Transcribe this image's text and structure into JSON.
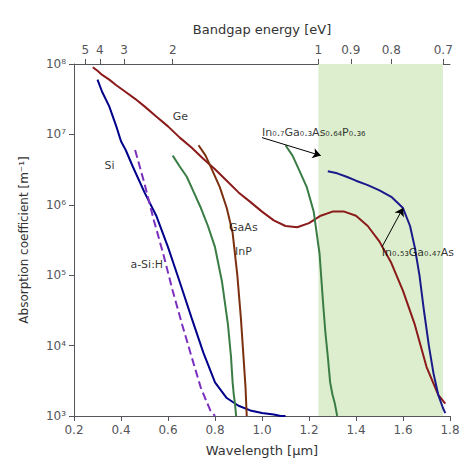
{
  "chart_data": {
    "type": "line",
    "log": "y",
    "grid": false,
    "xlabel": "Wavelength [μm]",
    "ylabel": "Absorption coefficient [m⁻¹]",
    "x2label": "Bandgap energy [eV]",
    "xlim": [
      0.2,
      1.8
    ],
    "ylim": [
      1000.0,
      100000000.0
    ],
    "x2lim": [
      0.2,
      1.8
    ],
    "xticks": [
      0.2,
      0.4,
      0.6,
      0.8,
      {
        "value": 1.0,
        "label": "1.0"
      },
      1.2,
      1.4,
      1.6,
      1.8
    ],
    "yticks": [
      {
        "value": 1000,
        "label": "10³"
      },
      {
        "value": 10000,
        "label": "10⁴"
      },
      {
        "value": 100000,
        "label": "10⁵"
      },
      {
        "value": 1000000,
        "label": "10⁶"
      },
      {
        "value": 10000000,
        "label": "10⁷"
      },
      {
        "value": 100000000,
        "label": "10⁸"
      }
    ],
    "x2ticks": [
      {
        "value": 0.248,
        "label": "5"
      },
      {
        "value": 0.31,
        "label": "4"
      },
      {
        "value": 0.41333333333333333,
        "label": "3"
      },
      {
        "value": 0.62,
        "label": "2"
      },
      {
        "value": 1.24,
        "label": "1"
      },
      {
        "value": 1.3777777777777778,
        "label": "0.9"
      },
      {
        "value": 1.55,
        "label": "0.8"
      },
      {
        "value": 1.7714285714285714,
        "label": "0.7"
      }
    ],
    "shaded_region": {
      "x": [
        1.24,
        1.77
      ],
      "color": "#ddeece"
    },
    "series": [
      {
        "color": "#8b1a1a",
        "line_style": "solid",
        "x": [
          0.28,
          0.3,
          0.32,
          0.35,
          0.38,
          0.42,
          0.46,
          0.5,
          0.55,
          0.6,
          0.65,
          0.7,
          0.75,
          0.8,
          0.85,
          0.9,
          0.95,
          1.0,
          1.05,
          1.1,
          1.15,
          1.2,
          1.25,
          1.3,
          1.35,
          1.4,
          1.45,
          1.5,
          1.55,
          1.6,
          1.65,
          1.7,
          1.75,
          1.78
        ],
        "values": [
          90000000.0,
          80000000.0,
          70000000.0,
          60000000.0,
          50000000.0,
          40000000.0,
          32000000.0,
          25000000.0,
          18000000.0,
          13000000.0,
          9000000.0,
          6500000.0,
          4500000.0,
          3200000.0,
          2200000.0,
          1500000.0,
          1100000.0,
          800000.0,
          600000.0,
          500000.0,
          480000.0,
          550000.0,
          700000.0,
          800000.0,
          800000.0,
          700000.0,
          500000.0,
          300000.0,
          150000.0,
          60000.0,
          20000.0,
          5000.0,
          2000.0,
          1500.0
        ]
      },
      {
        "color": "#00008b",
        "line_style": "solid",
        "x": [
          0.3,
          0.32,
          0.35,
          0.38,
          0.4,
          0.42,
          0.45,
          0.5,
          0.55,
          0.6,
          0.65,
          0.7,
          0.75,
          0.8,
          0.85,
          0.9,
          0.95,
          1.0,
          1.05,
          1.08,
          1.1
        ],
        "values": [
          60000000.0,
          40000000.0,
          25000000.0,
          13000000.0,
          8000000.0,
          6000000.0,
          3500000.0,
          1500000.0,
          700000.0,
          250000.0,
          80000.0,
          25000.0,
          8000.0,
          3000.0,
          1800.0,
          1400.0,
          1200.0,
          1100.0,
          1050.0,
          1000.0,
          1000.0
        ]
      },
      {
        "color": "#7b2fbe",
        "line_style": "dashed",
        "x": [
          0.46,
          0.5,
          0.54,
          0.58,
          0.62,
          0.66,
          0.7,
          0.74,
          0.78,
          0.8
        ],
        "values": [
          6000000.0,
          2000000.0,
          600000.0,
          200000.0,
          60000.0,
          20000.0,
          7000.0,
          2500.0,
          1200.0,
          1000.0
        ]
      },
      {
        "color": "#3a7d44",
        "line_style": "solid",
        "x": [
          0.62,
          0.65,
          0.68,
          0.71,
          0.74,
          0.77,
          0.8,
          0.83,
          0.855,
          0.868,
          0.875,
          0.88,
          0.885,
          0.89
        ],
        "values": [
          5000000.0,
          3500000.0,
          2500000.0,
          1500000.0,
          900000.0,
          500000.0,
          250000.0,
          80000.0,
          20000.0,
          7000.0,
          3000.0,
          2000.0,
          1500.0,
          1000.0
        ]
      },
      {
        "color": "#7b3010",
        "line_style": "solid",
        "x": [
          0.73,
          0.76,
          0.79,
          0.82,
          0.85,
          0.875,
          0.895,
          0.91,
          0.92,
          0.93,
          0.935
        ],
        "values": [
          7000000.0,
          5000000.0,
          3000000.0,
          1800000.0,
          900000.0,
          400000.0,
          100000.0,
          25000.0,
          8000.0,
          2500.0,
          1000.0
        ]
      },
      {
        "color": "#3a7d44",
        "line_style": "solid",
        "x": [
          1.1,
          1.13,
          1.16,
          1.19,
          1.22,
          1.245,
          1.26,
          1.27,
          1.28,
          1.29,
          1.3,
          1.31,
          1.32
        ],
        "values": [
          7000000.0,
          5000000.0,
          3000000.0,
          1800000.0,
          800000.0,
          200000.0,
          40000.0,
          15000.0,
          7000.0,
          3000.0,
          2000.0,
          1500.0,
          1000.0
        ]
      },
      {
        "color": "#1a1a8b",
        "line_style": "solid",
        "x": [
          1.28,
          1.32,
          1.36,
          1.4,
          1.45,
          1.5,
          1.55,
          1.6,
          1.63,
          1.65,
          1.67,
          1.69,
          1.71,
          1.73,
          1.75,
          1.77,
          1.78
        ],
        "values": [
          3000000.0,
          2800000.0,
          2500000.0,
          2200000.0,
          1900000.0,
          1600000.0,
          1300000.0,
          900000.0,
          500000.0,
          250000.0,
          100000.0,
          30000.0,
          10000.0,
          4000.0,
          2000.0,
          1300.0,
          1100.0
        ]
      }
    ],
    "annotations": [
      {
        "text": "Ge",
        "x": 0.62,
        "y": 15000000.0
      },
      {
        "text": "Si",
        "x": 0.33,
        "y": 3000000.0
      },
      {
        "text": "a-Si:H",
        "x": 0.44,
        "y": 120000.0
      },
      {
        "text": "GaAs",
        "x": 0.86,
        "y": 400000.0
      },
      {
        "text": "InP",
        "x": 0.885,
        "y": 180000.0
      },
      {
        "text": "In₀.₇Ga₀.₃As₀.₆₄P₀.₃₆",
        "x": 1.0,
        "y": 9000000.0,
        "arrow_to": [
          1.25,
          5000000.0
        ]
      },
      {
        "text": "In₀.₅₃Ga₀.₄₇As",
        "x": 1.51,
        "y": 250000.0,
        "arrow_to": [
          1.6,
          900000.0
        ]
      }
    ]
  }
}
